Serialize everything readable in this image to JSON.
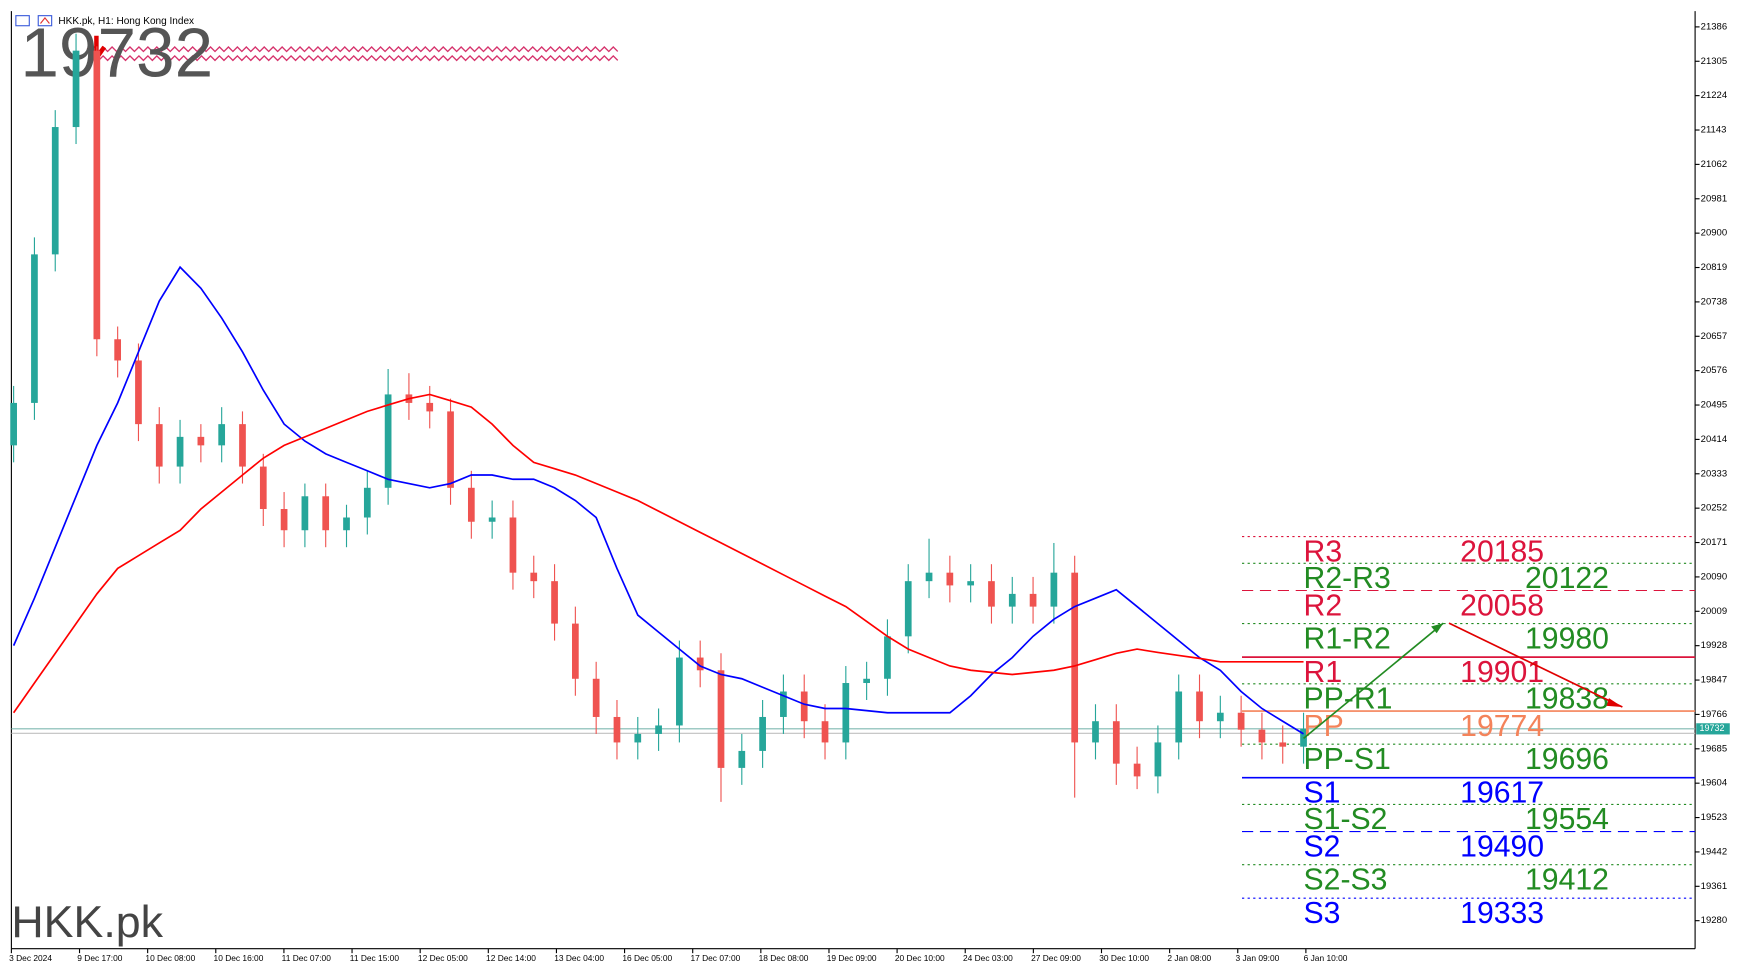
{
  "chart_data": {
    "type": "candlestick",
    "title": "HKK.pk, H1:  Hong Kong Index",
    "watermark": "HKK.pk",
    "last_price": 19732,
    "ylim": [
      19214,
      21423
    ],
    "yticks": [
      21386,
      21305,
      21224,
      21143,
      21062,
      20981,
      20900,
      20819,
      20738,
      20657,
      20576,
      20495,
      20414,
      20333,
      20252,
      20171,
      20090,
      20009,
      19928,
      19847,
      19766,
      19685,
      19604,
      19523,
      19442,
      19361,
      19280
    ],
    "xtick_labels": [
      "3 Dec 2024",
      "9 Dec 17:00",
      "10 Dec 08:00",
      "10 Dec 16:00",
      "11 Dec 07:00",
      "11 Dec 15:00",
      "12 Dec 05:00",
      "12 Dec 14:00",
      "13 Dec 04:00",
      "16 Dec 05:00",
      "17 Dec 07:00",
      "18 Dec 08:00",
      "19 Dec 09:00",
      "20 Dec 10:00",
      "24 Dec 03:00",
      "27 Dec 09:00",
      "30 Dec 10:00",
      "2 Jan 08:00",
      "3 Jan 09:00",
      "6 Jan 10:00"
    ],
    "up_color": "#26a69a",
    "down_color": "#ef5350",
    "ohlc": {
      "open": [
        20400,
        20500,
        20850,
        21150,
        21330,
        20650,
        20600,
        20450,
        20350,
        20420,
        20400,
        20450,
        20350,
        20250,
        20200,
        20280,
        20200,
        20230,
        20300,
        20520,
        20500,
        20480,
        20300,
        20220,
        20230,
        20100,
        20080,
        19980,
        19850,
        19760,
        19700,
        19720,
        19740,
        19900,
        19870,
        19640,
        19680,
        19760,
        19820,
        19750,
        19700,
        19840,
        19850,
        19950,
        20080,
        20100,
        20070,
        20080,
        20020,
        20050,
        20020,
        20100,
        19700,
        19750,
        19650,
        19620,
        19700,
        19820,
        19750,
        19770,
        19730,
        19700,
        19690
      ],
      "high": [
        20540,
        20890,
        21190,
        21370,
        21340,
        20680,
        20640,
        20490,
        20460,
        20450,
        20490,
        20480,
        20380,
        20290,
        20310,
        20310,
        20260,
        20340,
        20580,
        20570,
        20540,
        20510,
        20340,
        20270,
        20270,
        20140,
        20120,
        20020,
        19890,
        19800,
        19760,
        19780,
        19940,
        19940,
        19910,
        19720,
        19800,
        19860,
        19860,
        19790,
        19880,
        19890,
        19990,
        20120,
        20180,
        20140,
        20120,
        20120,
        20090,
        20090,
        20170,
        20140,
        19790,
        19790,
        19690,
        19740,
        19860,
        19860,
        19810,
        19810,
        19770,
        19740,
        19770
      ],
      "low": [
        20360,
        20460,
        20810,
        21110,
        20610,
        20560,
        20410,
        20310,
        20310,
        20360,
        20360,
        20310,
        20210,
        20160,
        20160,
        20160,
        20160,
        20190,
        20260,
        20460,
        20440,
        20260,
        20180,
        20180,
        20060,
        20040,
        19940,
        19810,
        19720,
        19660,
        19660,
        19680,
        19700,
        19830,
        19560,
        19600,
        19640,
        19720,
        19710,
        19660,
        19660,
        19800,
        19810,
        19910,
        20040,
        20030,
        20030,
        19980,
        19980,
        19980,
        19980,
        19570,
        19660,
        19600,
        19590,
        19580,
        19660,
        19710,
        19710,
        19690,
        19660,
        19650,
        19650
      ],
      "close": [
        20500,
        20850,
        21150,
        21330,
        20650,
        20600,
        20450,
        20350,
        20420,
        20400,
        20450,
        20350,
        20250,
        20200,
        20280,
        20200,
        20230,
        20300,
        20520,
        20500,
        20480,
        20300,
        20220,
        20230,
        20100,
        20080,
        19980,
        19850,
        19760,
        19700,
        19720,
        19740,
        19900,
        19870,
        19640,
        19680,
        19760,
        19820,
        19750,
        19700,
        19840,
        19850,
        19950,
        20080,
        20100,
        20070,
        20080,
        20020,
        20050,
        20020,
        20100,
        19700,
        19750,
        19650,
        19620,
        19700,
        19820,
        19750,
        19770,
        19730,
        19700,
        19690,
        19732
      ]
    },
    "series": [
      {
        "color": "#0000ff",
        "values": [
          19928,
          20040,
          20160,
          20280,
          20400,
          20500,
          20620,
          20740,
          20820,
          20770,
          20700,
          20620,
          20530,
          20450,
          20410,
          20380,
          20360,
          20340,
          20320,
          20310,
          20300,
          20310,
          20330,
          20330,
          20320,
          20320,
          20300,
          20270,
          20230,
          20110,
          20000,
          19960,
          19920,
          19880,
          19860,
          19850,
          19830,
          19810,
          19790,
          19780,
          19780,
          19775,
          19770,
          19770,
          19770,
          19770,
          19810,
          19860,
          19900,
          19950,
          19990,
          20020,
          20040,
          20060,
          20020,
          19980,
          19940,
          19900,
          19870,
          19820,
          19780,
          19750,
          19720
        ]
      },
      {
        "color": "#ff0000",
        "values": [
          19770,
          19840,
          19910,
          19980,
          20050,
          20110,
          20140,
          20170,
          20200,
          20250,
          20290,
          20330,
          20370,
          20400,
          20420,
          20440,
          20460,
          20480,
          20495,
          20510,
          20520,
          20505,
          20490,
          20450,
          20400,
          20360,
          20345,
          20330,
          20310,
          20290,
          20270,
          20245,
          20220,
          20195,
          20170,
          20145,
          20120,
          20095,
          20070,
          20045,
          20020,
          19985,
          19950,
          19920,
          19900,
          19880,
          19870,
          19865,
          19860,
          19865,
          19870,
          19880,
          19895,
          19910,
          19920,
          19912,
          19905,
          19898,
          19890,
          19890,
          19890,
          19890,
          19890
        ]
      }
    ],
    "pivots": [
      {
        "name": "R3",
        "value": 20185,
        "color": "#dc143c",
        "style": "dotted",
        "kind": "main"
      },
      {
        "name": "R2-R3",
        "value": 20122,
        "color": "#228b22",
        "style": "dotted",
        "kind": "mid"
      },
      {
        "name": "R2",
        "value": 20058,
        "color": "#dc143c",
        "style": "dashed",
        "kind": "main"
      },
      {
        "name": "R1-R2",
        "value": 19980,
        "color": "#228b22",
        "style": "dotted",
        "kind": "mid"
      },
      {
        "name": "R1",
        "value": 19901,
        "color": "#dc143c",
        "style": "solid",
        "kind": "main"
      },
      {
        "name": "PP-R1",
        "value": 19838,
        "color": "#228b22",
        "style": "dotted",
        "kind": "mid"
      },
      {
        "name": "PP",
        "value": 19774,
        "color": "#f4835a",
        "style": "solid",
        "kind": "main"
      },
      {
        "name": "PP-S1",
        "value": 19696,
        "color": "#228b22",
        "style": "dotted",
        "kind": "mid"
      },
      {
        "name": "S1",
        "value": 19617,
        "color": "#0000ff",
        "style": "solid",
        "kind": "main"
      },
      {
        "name": "S1-S2",
        "value": 19554,
        "color": "#228b22",
        "style": "dotted",
        "kind": "mid"
      },
      {
        "name": "S2",
        "value": 19490,
        "color": "#0000ff",
        "style": "dashed",
        "kind": "main"
      },
      {
        "name": "S2-S3",
        "value": 19412,
        "color": "#228b22",
        "style": "dotted",
        "kind": "mid"
      },
      {
        "name": "S3",
        "value": 19333,
        "color": "#0000ff",
        "style": "dotted",
        "kind": "main"
      }
    ]
  }
}
